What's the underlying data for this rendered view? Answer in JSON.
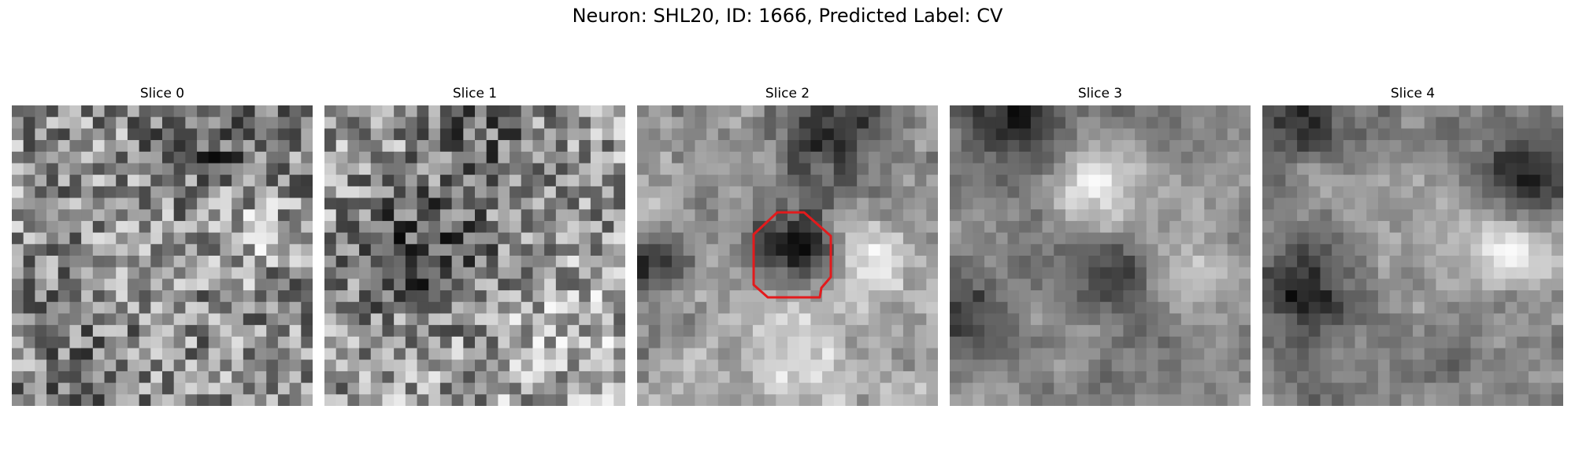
{
  "figure": {
    "title": "Neuron: SHL20, ID: 1666, Predicted Label: CV",
    "panels": [
      {
        "label": "Slice 0",
        "image": "grayscale-noise-patch"
      },
      {
        "label": "Slice 1",
        "image": "grayscale-noise-patch"
      },
      {
        "label": "Slice 2",
        "image": "grayscale-noise-patch-with-red-outline"
      },
      {
        "label": "Slice 3",
        "image": "grayscale-noise-patch"
      },
      {
        "label": "Slice 4",
        "image": "grayscale-noise-patch"
      }
    ],
    "outline_color": "#e31a1c"
  }
}
